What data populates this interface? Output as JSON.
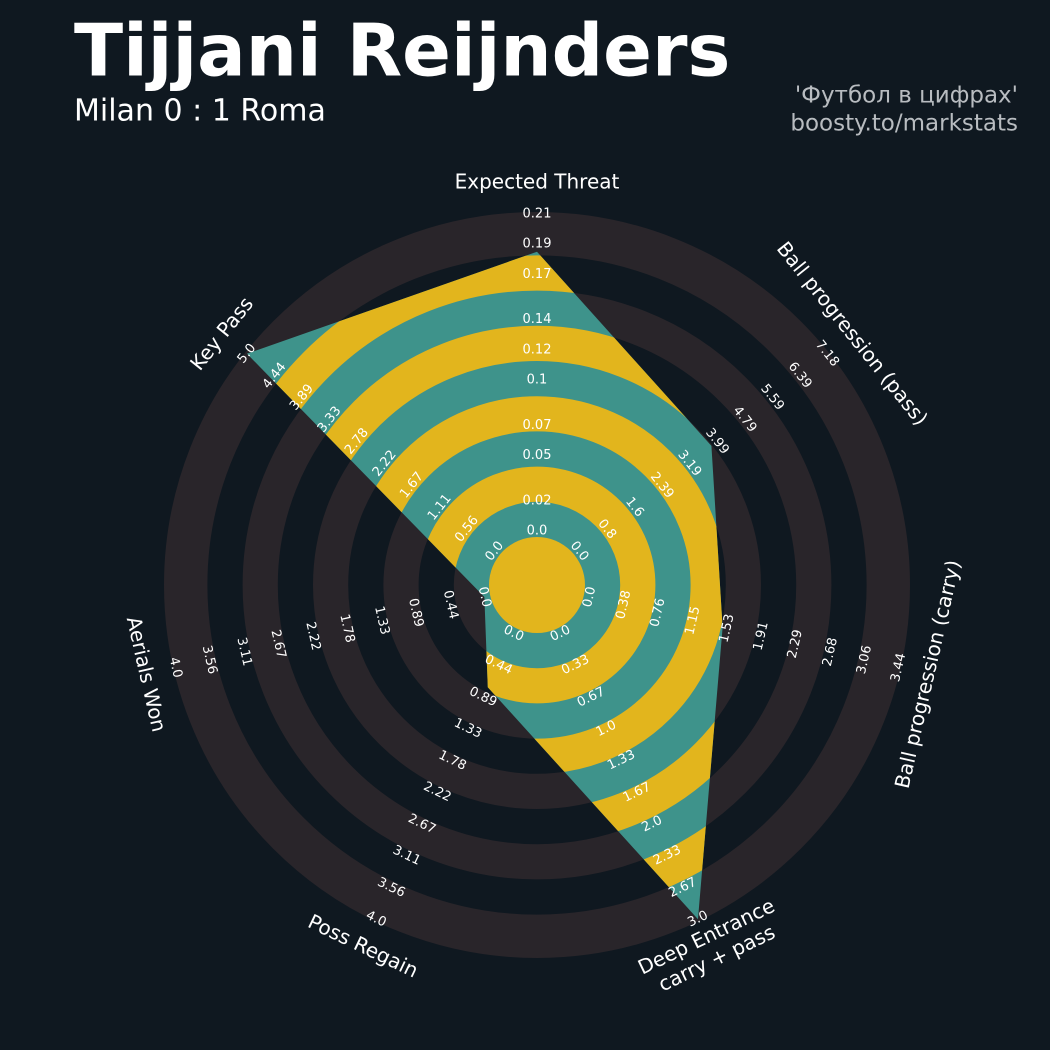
{
  "chart_data": {
    "type": "radar",
    "title": "Tijjani Reijnders",
    "subtitle": "Milan 0 : 1 Roma",
    "credits": [
      "'Футбол в цифрах'",
      "boosty.to/markstats"
    ],
    "categories": [
      "Expected Threat",
      "Ball progression (pass)",
      "Ball progression (carry)",
      [
        "Deep Entrance",
        "carry + pass"
      ],
      "Poss Regain",
      "Aerials Won",
      "Key Pass"
    ],
    "values": [
      0.185,
      3.83,
      1.48,
      3.0,
      0.75,
      0,
      5.0
    ],
    "colors": {
      "polygon": "#3e938b",
      "rings": "#e2b51d"
    },
    "axes": [
      {
        "lim": [
          0,
          0.21
        ],
        "ticks": [
          {
            "value": 0,
            "label": "0.0"
          },
          0.02,
          0.05,
          0.07,
          0.1,
          0.12,
          0.14,
          0.17,
          0.19,
          0.21
        ]
      },
      {
        "lim": [
          0,
          7.18
        ],
        "ticks": [
          {
            "value": 0,
            "label": "0.0"
          },
          0.8,
          1.6,
          2.39,
          3.19,
          3.99,
          4.79,
          5.59,
          6.39,
          7.18
        ]
      },
      {
        "lim": [
          0,
          3.44
        ],
        "ticks": [
          {
            "value": 0,
            "label": "0.0"
          },
          0.38,
          0.76,
          1.15,
          1.53,
          1.91,
          2.29,
          2.68,
          3.06,
          3.44
        ]
      },
      {
        "lim": [
          0,
          3
        ],
        "ticks": [
          {
            "value": 0,
            "label": "0.0"
          },
          0.33,
          0.67,
          {
            "value": 1,
            "label": "1.0"
          },
          1.33,
          1.67,
          {
            "value": 2,
            "label": "2.0"
          },
          2.33,
          2.67,
          {
            "value": 3,
            "label": "3.0"
          }
        ]
      },
      {
        "lim": [
          0,
          4
        ],
        "ticks": [
          {
            "value": 0,
            "label": "0.0"
          },
          0.44,
          0.89,
          1.33,
          1.78,
          2.22,
          2.67,
          3.11,
          3.56,
          {
            "value": 4,
            "label": "4.0"
          }
        ]
      },
      {
        "lim": [
          0,
          4
        ],
        "ticks": [
          {
            "value": 0,
            "label": "0.0"
          },
          0.44,
          0.89,
          1.33,
          1.78,
          2.22,
          2.67,
          3.11,
          3.56,
          {
            "value": 4,
            "label": "4.0"
          }
        ]
      },
      {
        "lim": [
          0,
          5
        ],
        "ticks": [
          {
            "value": 0,
            "label": "0.0"
          },
          0.56,
          1.11,
          1.67,
          2.22,
          2.78,
          3.33,
          3.89,
          4.44,
          {
            "value": 5,
            "label": "5.0"
          }
        ]
      }
    ]
  }
}
